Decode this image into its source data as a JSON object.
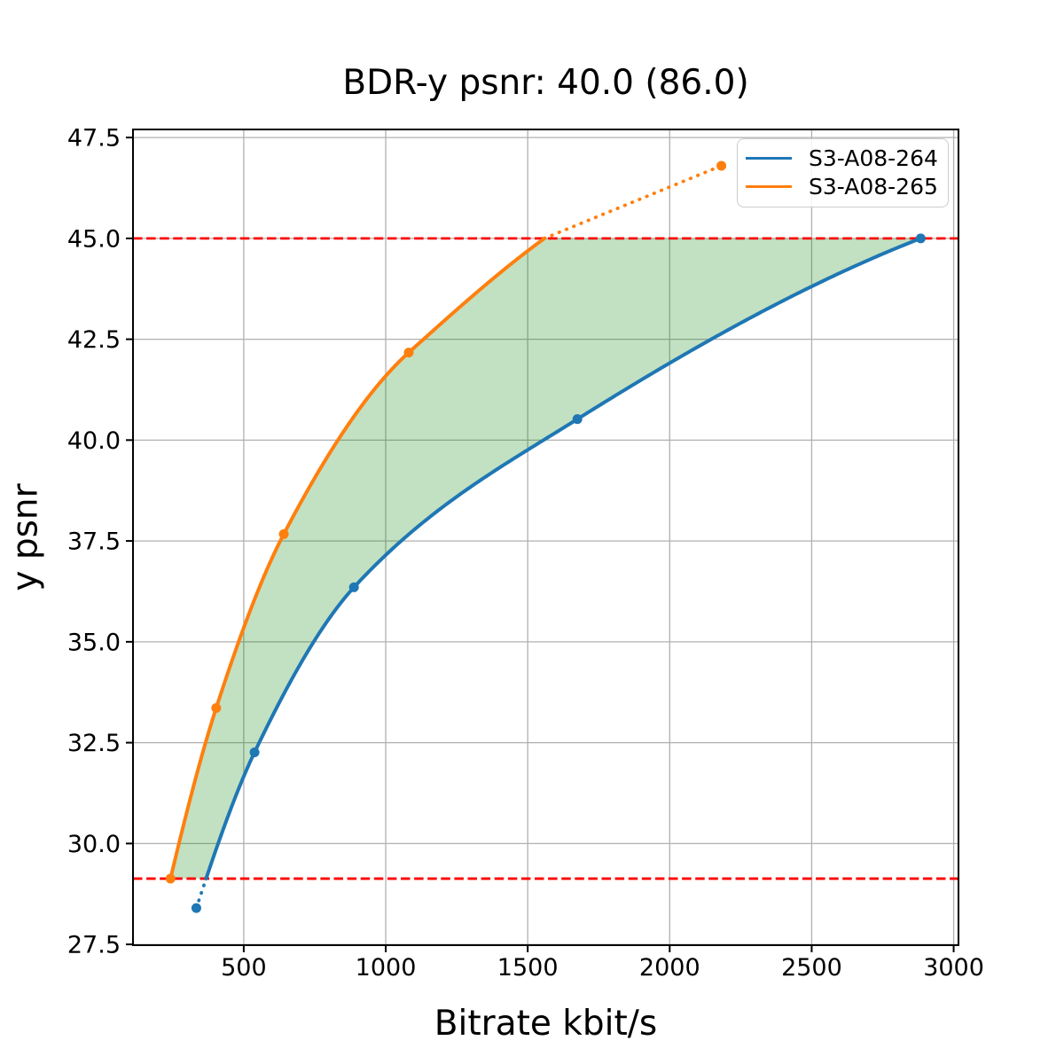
{
  "chart_data": {
    "type": "line",
    "title": "BDR-y psnr: 40.0 (86.0)",
    "xlabel": "Bitrate kbit/s",
    "ylabel": "y psnr",
    "xlim": [
      110,
      3017
    ],
    "ylim": [
      27.48,
      47.7
    ],
    "xticks": [
      500,
      1000,
      1500,
      2000,
      2500,
      3000
    ],
    "xtick_labels": [
      "500",
      "1000",
      "1500",
      "2000",
      "2500",
      "3000"
    ],
    "yticks": [
      27.5,
      30.0,
      32.5,
      35.0,
      37.5,
      40.0,
      42.5,
      45.0,
      47.5
    ],
    "ytick_labels": [
      "27.5",
      "30.0",
      "32.5",
      "35.0",
      "37.5",
      "40.0",
      "42.5",
      "45.0",
      "47.5"
    ],
    "grid": true,
    "grid_color": "#b0b0b0",
    "legend_position": "upper right",
    "hlines": {
      "values": [
        45.0,
        29.13
      ],
      "color": "#ff0000",
      "style": "dashed"
    },
    "series": [
      {
        "name": "S3-A08-264",
        "color": "#1f77b4",
        "points": [
          [
            333,
            28.4
          ],
          [
            538,
            32.26
          ],
          [
            888,
            36.35
          ],
          [
            1675,
            40.52
          ],
          [
            2884,
            45.0
          ]
        ]
      },
      {
        "name": "S3-A08-265",
        "color": "#ff7f0e",
        "points": [
          [
            242,
            29.13
          ],
          [
            403,
            33.36
          ],
          [
            641,
            37.67
          ],
          [
            1081,
            42.17
          ],
          [
            2182,
            46.8
          ]
        ]
      }
    ],
    "fill_between": {
      "color": "#008000",
      "opacity": 0.24,
      "y_from": 29.13,
      "y_to": 45.0
    }
  }
}
